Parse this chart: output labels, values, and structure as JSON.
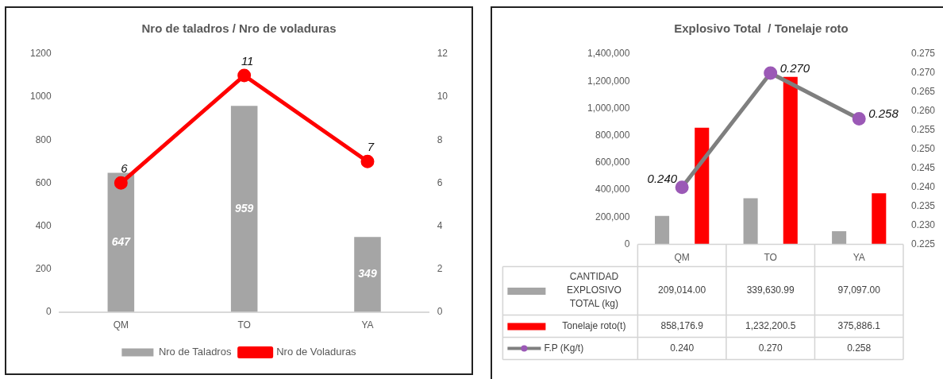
{
  "chart_data": [
    {
      "type": "bar",
      "title": "Nro de taladros / Nro de voladuras",
      "categories": [
        "QM",
        "TO",
        "YA"
      ],
      "series": [
        {
          "name": "Nro de Taladros",
          "color": "#a5a5a5",
          "values": [
            647,
            959,
            349
          ]
        },
        {
          "name": "Nro de Voladuras",
          "type": "line",
          "axis": "y2",
          "color": "#ff0000",
          "values": [
            6,
            11,
            7
          ]
        }
      ],
      "ylim": [
        0,
        1200
      ],
      "yticks": [
        0,
        200,
        400,
        600,
        800,
        1000,
        1200
      ],
      "y2lim": [
        0,
        12
      ],
      "y2ticks": [
        0,
        2,
        4,
        6,
        8,
        10,
        12
      ],
      "marker": "circle",
      "data_labels": true,
      "legend": "bottom"
    },
    {
      "type": "bar",
      "title": "Explosivo Total  / Tonelaje roto",
      "categories": [
        "QM",
        "TO",
        "YA"
      ],
      "series": [
        {
          "name": "CANTIDAD EXPLOSIVO TOTAL (kg)",
          "color": "#a5a5a5",
          "values": [
            209014.0,
            339630.99,
            97097.0
          ],
          "value_labels": [
            "209,014.00",
            "339,630.99",
            "97,097.00"
          ]
        },
        {
          "name": "Tonelaje roto(t)",
          "color": "#ff0000",
          "values": [
            858176.9,
            1232200.5,
            375886.1
          ],
          "value_labels": [
            "858,176.9",
            "1,232,200.5",
            "375,886.1"
          ]
        },
        {
          "name": "F.P (Kg/t)",
          "type": "line",
          "axis": "y2",
          "color": "#7f7f7f",
          "colors": [
            "#9b59b6",
            "#9b59b6",
            "#9b59b6"
          ],
          "values": [
            0.24,
            0.27,
            0.258
          ],
          "value_labels": [
            "0.240",
            "0.270",
            "0.258"
          ]
        }
      ],
      "ylim": [
        0,
        1400000
      ],
      "yticks": [
        0,
        {
          "value": 200000,
          "label": "200,000"
        },
        {
          "value": 400000,
          "label": "400,000"
        },
        {
          "value": 600000,
          "label": "600,000"
        },
        {
          "value": 800000,
          "label": "800,000"
        },
        {
          "value": 1000000,
          "label": "1,000,000"
        },
        {
          "value": 1200000,
          "label": "1,200,000"
        },
        {
          "value": 1400000,
          "label": "1,400,000"
        }
      ],
      "y2lim": [
        0.225,
        0.275
      ],
      "y2ticks": [
        0.225,
        {
          "value": 0.23,
          "label": "0.230"
        },
        0.235,
        {
          "value": 0.24,
          "label": "0.240"
        },
        0.245,
        {
          "value": 0.25,
          "label": "0.250"
        },
        0.255,
        {
          "value": 0.26,
          "label": "0.260"
        },
        0.265,
        {
          "value": 0.27,
          "label": "0.270"
        },
        0.275
      ],
      "marker": "circle",
      "legend": "bottom"
    }
  ]
}
